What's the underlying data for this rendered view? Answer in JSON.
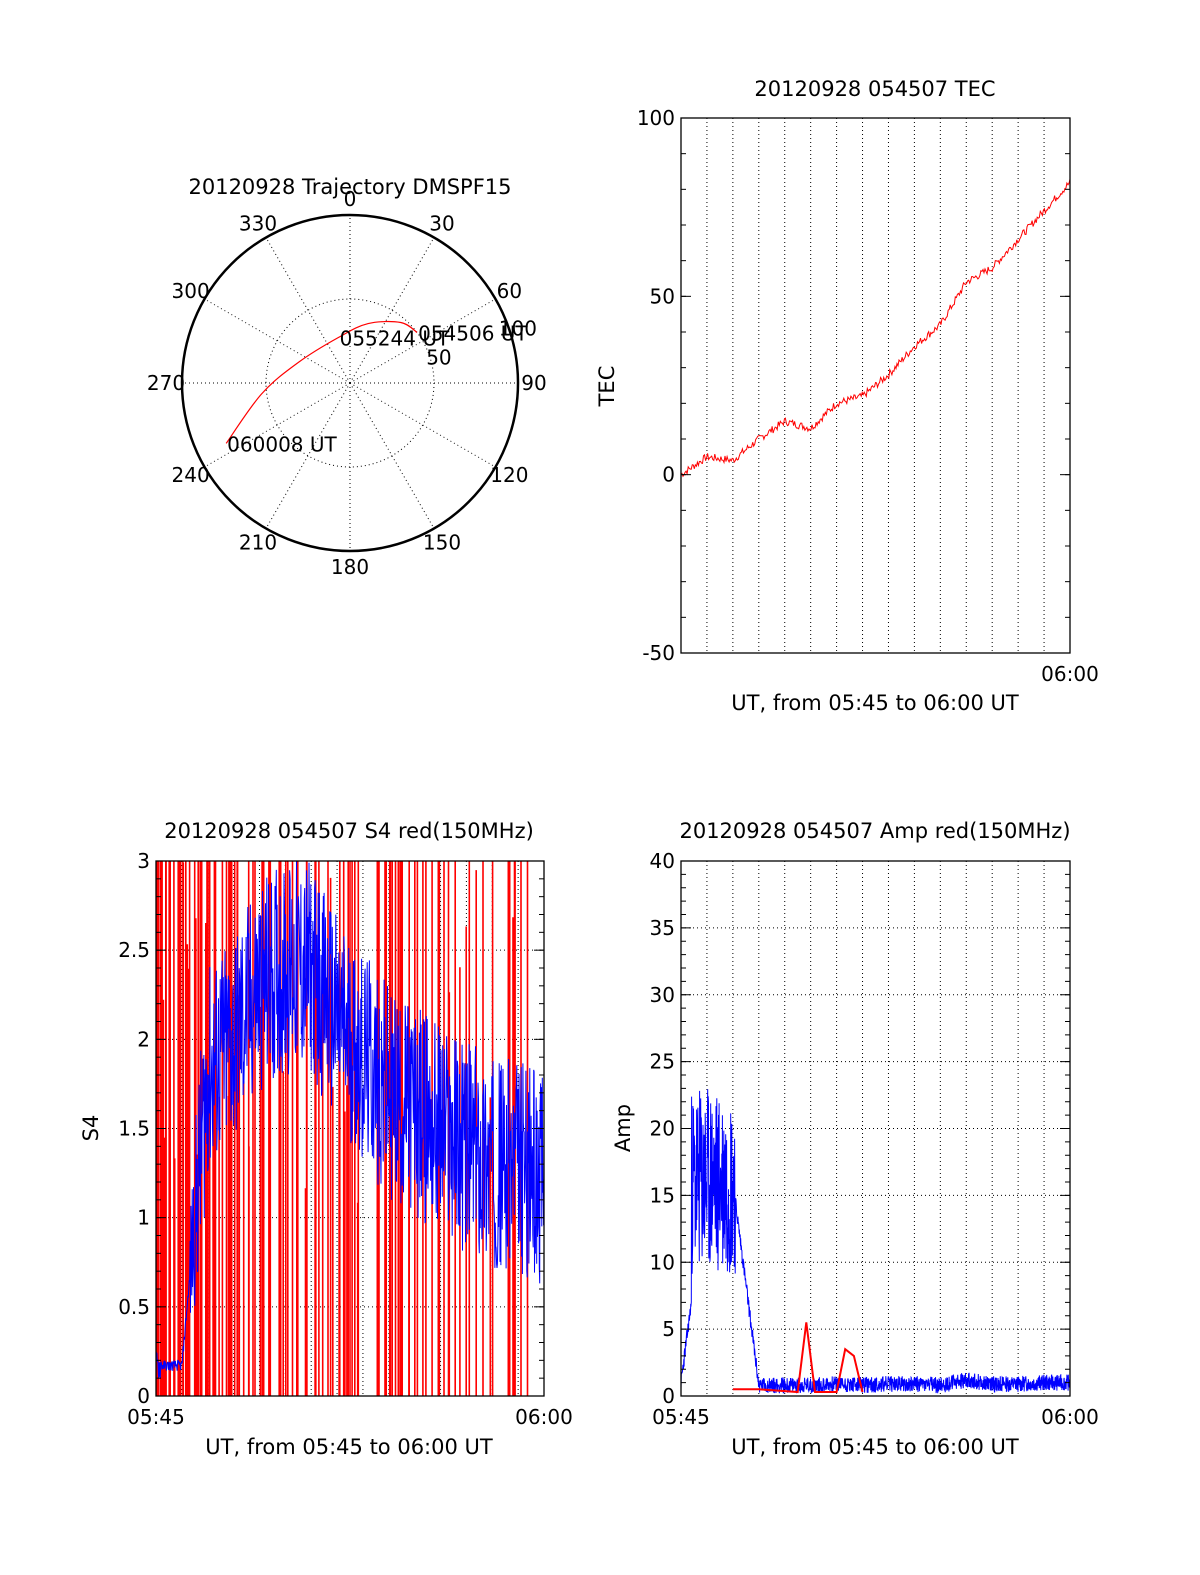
{
  "chart_data": [
    {
      "type": "polar",
      "title": "20120928 Trajectory DMSPF15",
      "azimuth_labels": [
        {
          "az": 0,
          "text": "0"
        },
        {
          "az": 30,
          "text": "30"
        },
        {
          "az": 60,
          "text": "60"
        },
        {
          "az": 90,
          "text": "90"
        },
        {
          "az": 120,
          "text": "120"
        },
        {
          "az": 150,
          "text": "150"
        },
        {
          "az": 180,
          "text": "180"
        },
        {
          "az": 210,
          "text": "210"
        },
        {
          "az": 240,
          "text": "240"
        },
        {
          "az": 270,
          "text": "270"
        },
        {
          "az": 300,
          "text": "300"
        },
        {
          "az": 330,
          "text": "330"
        }
      ],
      "ring_labels": [
        {
          "r": 50,
          "text": "50"
        },
        {
          "r": 100,
          "text": "100"
        }
      ],
      "r_max": 100,
      "ring_style": "dotted",
      "trajectory": {
        "color": "#ff0000",
        "points": [
          [
            50,
            53
          ],
          [
            47,
            40
          ],
          [
            37,
            17
          ],
          [
            28,
            346
          ],
          [
            33,
            292
          ],
          [
            53,
            263
          ],
          [
            82,
            244
          ]
        ]
      },
      "annotations": [
        {
          "time": "054506 UT",
          "az": 53,
          "r": 50
        },
        {
          "time": "055244 UT",
          "az": 346,
          "r": 28
        },
        {
          "time": "060008 UT",
          "az": 244,
          "r": 82
        }
      ]
    },
    {
      "type": "line",
      "title": "20120928 054507 TEC",
      "ylabel": "TEC",
      "xlabel": "UT, from 05:45 to 06:00 UT",
      "xlim": [
        "05:45",
        "06:00"
      ],
      "x_tick_labels": [
        "06:00"
      ],
      "ylim": [
        -50,
        100
      ],
      "y_ticks": [
        -50,
        0,
        50,
        100
      ],
      "grid": "vertical dotted",
      "series": [
        {
          "color": "#ff0000",
          "x": [
            "05:45",
            "05:46",
            "05:47",
            "05:48",
            "05:49",
            "05:50",
            "05:51",
            "05:52",
            "05:53",
            "05:54",
            "05:55",
            "05:56",
            "05:57",
            "05:58",
            "05:59",
            "06:00"
          ],
          "values": [
            0,
            5,
            4,
            10,
            15,
            13,
            20,
            22,
            28,
            36,
            42,
            54,
            58,
            66,
            74,
            82
          ]
        }
      ]
    },
    {
      "type": "line",
      "title": "20120928 054507 S4 red(150MHz)",
      "ylabel": "S4",
      "xlabel": "UT, from 05:45 to 06:00 UT",
      "xlim": [
        "05:45",
        "06:00"
      ],
      "x_tick_labels": [
        "05:45",
        "06:00"
      ],
      "ylim": [
        0,
        3
      ],
      "y_ticks": [
        0,
        0.5,
        1,
        1.5,
        2,
        2.5,
        3
      ],
      "grid": "dotted",
      "series": [
        {
          "color": "#0000ff",
          "x": [
            "05:45",
            "05:46",
            "05:47",
            "05:48",
            "05:49",
            "05:50",
            "05:51",
            "05:52",
            "05:53",
            "05:54",
            "05:55",
            "05:56",
            "05:57",
            "05:58",
            "05:59",
            "06:00"
          ],
          "values": [
            0.17,
            0.17,
            1.8,
            2.0,
            2.3,
            2.4,
            2.4,
            2.1,
            1.9,
            1.7,
            1.6,
            1.5,
            1.4,
            1.3,
            1.3,
            1.2
          ]
        },
        {
          "color": "#ff0000",
          "x": [
            "05:45",
            "05:46",
            "05:47",
            "05:48",
            "05:49",
            "05:50",
            "05:51",
            "05:52",
            "05:53",
            "05:54",
            "05:55",
            "05:56",
            "05:57",
            "05:58",
            "05:59",
            "06:00"
          ],
          "values": [
            3,
            3,
            3,
            3,
            3,
            3,
            3,
            3,
            3,
            3,
            3,
            3,
            3,
            3,
            3,
            3
          ]
        }
      ]
    },
    {
      "type": "line",
      "title": "20120928 054507 Amp red(150MHz)",
      "ylabel": "Amp",
      "xlabel": "UT, from 05:45 to 06:00 UT",
      "xlim": [
        "05:45",
        "06:00"
      ],
      "x_tick_labels": [
        "05:45",
        "06:00"
      ],
      "ylim": [
        0,
        40
      ],
      "y_ticks": [
        0,
        5,
        10,
        15,
        20,
        25,
        30,
        35,
        40
      ],
      "grid": "dotted",
      "series": [
        {
          "color": "#0000ff",
          "x": [
            "05:45",
            "05:46",
            "05:47",
            "05:48",
            "05:49",
            "05:50",
            "05:51",
            "05:52",
            "05:53",
            "05:54",
            "05:55",
            "05:56",
            "05:57",
            "05:58",
            "05:59",
            "06:00"
          ],
          "values": [
            1,
            16,
            16,
            0.8,
            0.8,
            0.8,
            0.9,
            0.8,
            0.9,
            0.9,
            0.8,
            1.2,
            0.9,
            0.9,
            1.0,
            1.0
          ]
        },
        {
          "color": "#ff0000",
          "x": [
            "05:47:00",
            "05:47:30",
            "05:48:00",
            "05:49:30",
            "05:49:50",
            "05:50:10",
            "05:51:00",
            "05:51:20",
            "05:51:40",
            "05:52:00"
          ],
          "values": [
            0.5,
            0.5,
            0.5,
            0.3,
            5.5,
            0.3,
            0.3,
            3.5,
            3.0,
            0.3
          ]
        }
      ]
    }
  ]
}
